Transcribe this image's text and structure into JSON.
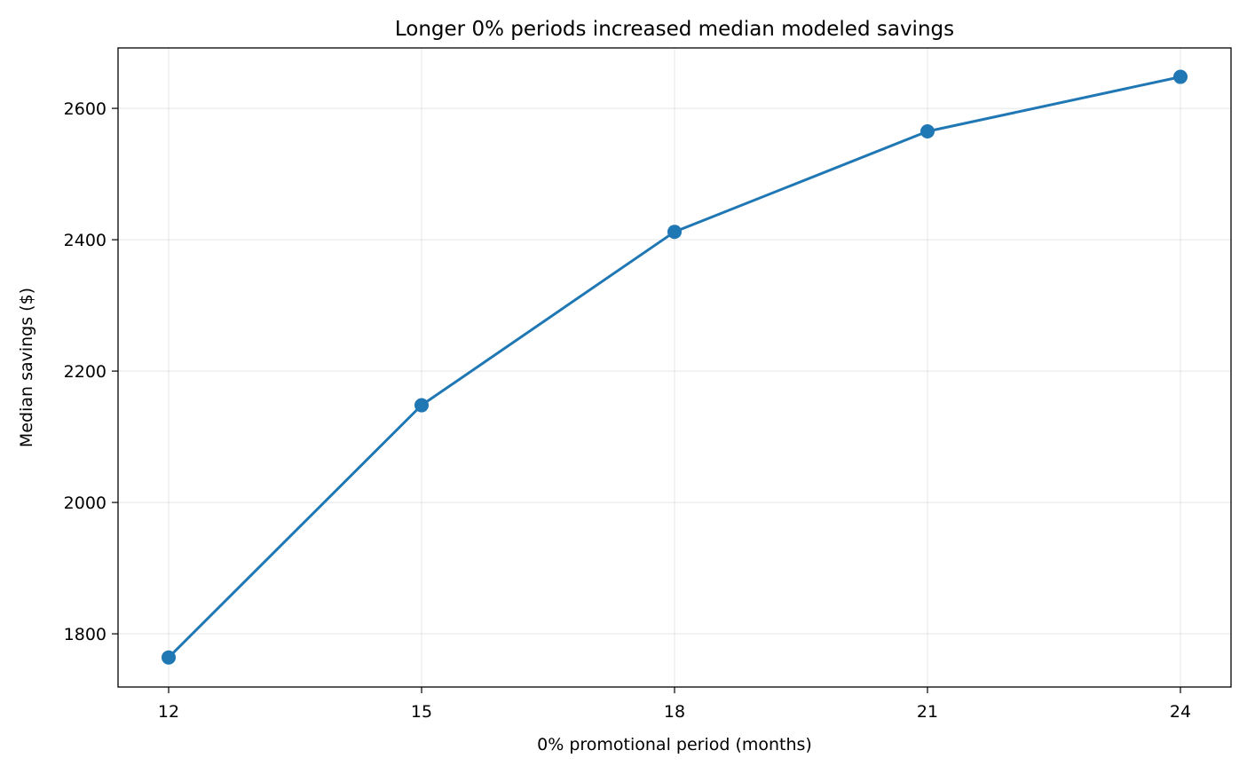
{
  "chart_data": {
    "type": "line",
    "title": "Longer 0% periods increased median modeled savings",
    "xlabel": "0% promotional period (months)",
    "ylabel": "Median savings ($)",
    "x": [
      12,
      15,
      18,
      21,
      24
    ],
    "series": [
      {
        "values": [
          1764,
          2148,
          2412,
          2565,
          2648
        ],
        "color": "#1f77b4",
        "marker": "circle"
      }
    ],
    "xlim": [
      11.4,
      24.6
    ],
    "ylim": [
      1719,
      2692
    ],
    "xticks": [
      12,
      15,
      18,
      21,
      24
    ],
    "yticks": [
      1800,
      2000,
      2200,
      2400,
      2600
    ],
    "grid": true,
    "legend": "none"
  }
}
